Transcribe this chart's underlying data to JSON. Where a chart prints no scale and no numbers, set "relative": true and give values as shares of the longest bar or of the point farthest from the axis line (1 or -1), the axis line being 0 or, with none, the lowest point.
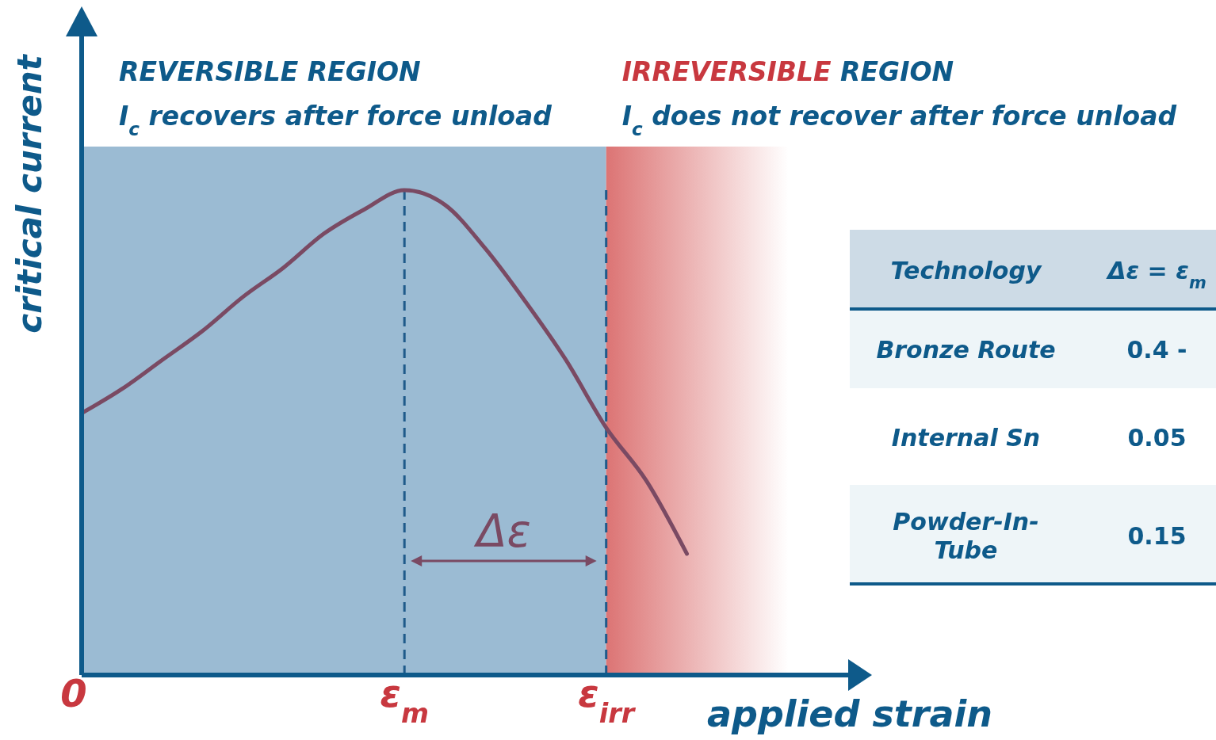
{
  "chart_data": {
    "type": "line",
    "relative": true,
    "xlabel": "applied strain",
    "ylabel": "critical current",
    "categories": [
      "0",
      null,
      null,
      null,
      null,
      null,
      null,
      null,
      "ε$_{m}$",
      null,
      null,
      null,
      null,
      "ε$_{irr}$",
      null,
      null
    ],
    "series": [
      {
        "color": "#7a4a63",
        "values": [
          0.54,
          0.59,
          0.65,
          0.71,
          0.78,
          0.84,
          0.91,
          0.96,
          1,
          0.97,
          0.88,
          0.77,
          0.65,
          0.51,
          0.4,
          0.25
        ]
      }
    ],
    "ref_lines": [
      {
        "axis": "x",
        "value": "ε$_{m}$",
        "color": "#1f5a8a",
        "line_style": "dashed"
      },
      {
        "axis": "x",
        "value": "ε$_{irr}$",
        "color": "#1f5a8a",
        "line_style": "dashed"
      }
    ],
    "bands": [
      {
        "axis": "x",
        "from": "0",
        "to": "ε$_{irr}$",
        "label": "REVERSIBLE REGION",
        "color": "#9bbbd3"
      }
    ],
    "annotations": [
      "I$_{c}$ recovers after force unload",
      "IRREVERSIBLE REGION",
      "I$_{c}$ does not recover after force unload",
      "Δε",
      "Technology",
      "Δε = ε$_{m}$",
      "Bronze Route",
      "0.4 -",
      "Internal Sn",
      "0.05",
      "Powder-In-Tube",
      "0.15"
    ]
  }
}
